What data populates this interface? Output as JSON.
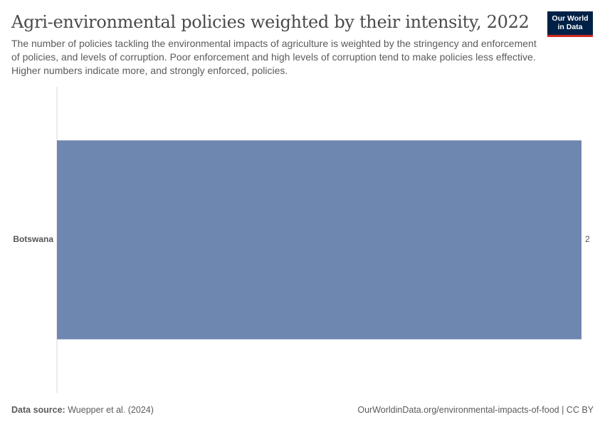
{
  "header": {
    "title": "Agri-environmental policies weighted by their intensity, 2022",
    "subtitle": "The number of policies tackling the environmental impacts of agriculture is weighted by the stringency and enforcement of policies, and levels of corruption. Poor enforcement and high levels of corruption tend to make policies less effective. Higher numbers indicate more, and strongly enforced, policies."
  },
  "logo": {
    "line1": "Our World",
    "line2": "in Data"
  },
  "chart_data": {
    "type": "bar",
    "orientation": "horizontal",
    "categories": [
      "Botswana"
    ],
    "values": [
      2
    ],
    "value_labels": [
      "2"
    ],
    "xlim": [
      0,
      2
    ],
    "bar_color": "#6e87b0",
    "axis_color": "#dadada",
    "grid": false
  },
  "footer": {
    "source_label": "Data source:",
    "source_text": "Wuepper et al. (2024)",
    "url_text": "OurWorldinData.org/environmental-impacts-of-food | CC BY"
  }
}
